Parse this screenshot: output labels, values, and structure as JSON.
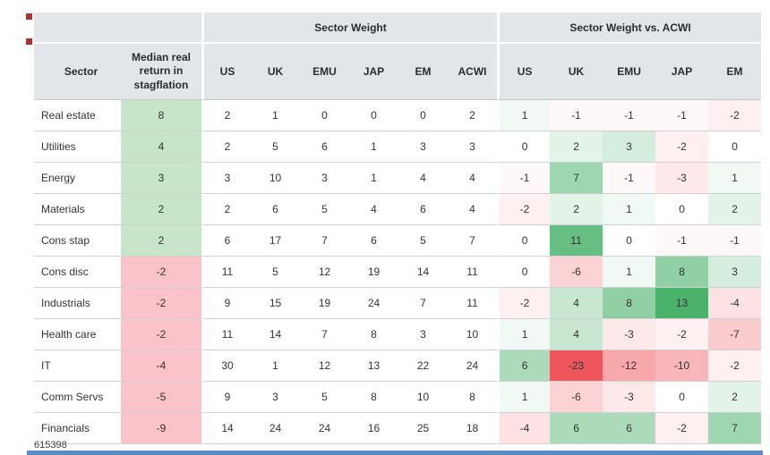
{
  "page": {
    "footnote": "615398",
    "accent_red": "#b82d2d",
    "accent_blue": "#5b8ac4",
    "header_bg": "#e3e6e9"
  },
  "chart_data": {
    "type": "table",
    "subtype": "heatmap-table",
    "col_groups": {
      "weight": "Sector Weight",
      "vs_acwi": "Sector Weight vs. ACWI"
    },
    "headers": {
      "sector": "Sector",
      "median": "Median real return in stagflation"
    },
    "weight_columns": [
      "US",
      "UK",
      "EMU",
      "JAP",
      "EM",
      "ACWI"
    ],
    "vs_columns": [
      "US",
      "UK",
      "EMU",
      "JAP",
      "EM"
    ],
    "rows": [
      {
        "sector": "Real estate",
        "median": 8,
        "weights": [
          2,
          1,
          0,
          0,
          0,
          2
        ],
        "vs": [
          1,
          -1,
          -1,
          -1,
          -2
        ]
      },
      {
        "sector": "Utilities",
        "median": 4,
        "weights": [
          2,
          5,
          6,
          1,
          3,
          3
        ],
        "vs": [
          0,
          2,
          3,
          -2,
          0
        ]
      },
      {
        "sector": "Energy",
        "median": 3,
        "weights": [
          3,
          10,
          3,
          1,
          4,
          4
        ],
        "vs": [
          -1,
          7,
          -1,
          -3,
          1
        ]
      },
      {
        "sector": "Materials",
        "median": 2,
        "weights": [
          2,
          6,
          5,
          4,
          6,
          4
        ],
        "vs": [
          -2,
          2,
          1,
          0,
          2
        ]
      },
      {
        "sector": "Cons stap",
        "median": 2,
        "weights": [
          6,
          17,
          7,
          6,
          5,
          7
        ],
        "vs": [
          0,
          11,
          0,
          -1,
          -1
        ]
      },
      {
        "sector": "Cons disc",
        "median": -2,
        "weights": [
          11,
          5,
          12,
          19,
          14,
          11
        ],
        "vs": [
          0,
          -6,
          1,
          8,
          3
        ]
      },
      {
        "sector": "Industrials",
        "median": -2,
        "weights": [
          9,
          15,
          19,
          24,
          7,
          11
        ],
        "vs": [
          -2,
          4,
          8,
          13,
          -4
        ]
      },
      {
        "sector": "Health care",
        "median": -2,
        "weights": [
          11,
          14,
          7,
          8,
          3,
          10
        ],
        "vs": [
          1,
          4,
          -3,
          -2,
          -7
        ]
      },
      {
        "sector": "IT",
        "median": -4,
        "weights": [
          30,
          1,
          12,
          13,
          22,
          24
        ],
        "vs": [
          6,
          -23,
          -12,
          -10,
          -2
        ]
      },
      {
        "sector": "Comm Servs",
        "median": -5,
        "weights": [
          9,
          3,
          5,
          8,
          10,
          8
        ],
        "vs": [
          1,
          -6,
          -3,
          0,
          2
        ]
      },
      {
        "sector": "Financials",
        "median": -9,
        "weights": [
          14,
          24,
          24,
          16,
          25,
          18
        ],
        "vs": [
          -4,
          6,
          6,
          -2,
          7
        ]
      }
    ],
    "heatmap": {
      "median_positive_color": "#c7e5c9",
      "median_negative_color": "#f9c3c9",
      "vs_green_endpoint": "#4bb26b",
      "vs_red_endpoint": "#ee585c",
      "vs_zero_color": "#ffffff"
    }
  }
}
